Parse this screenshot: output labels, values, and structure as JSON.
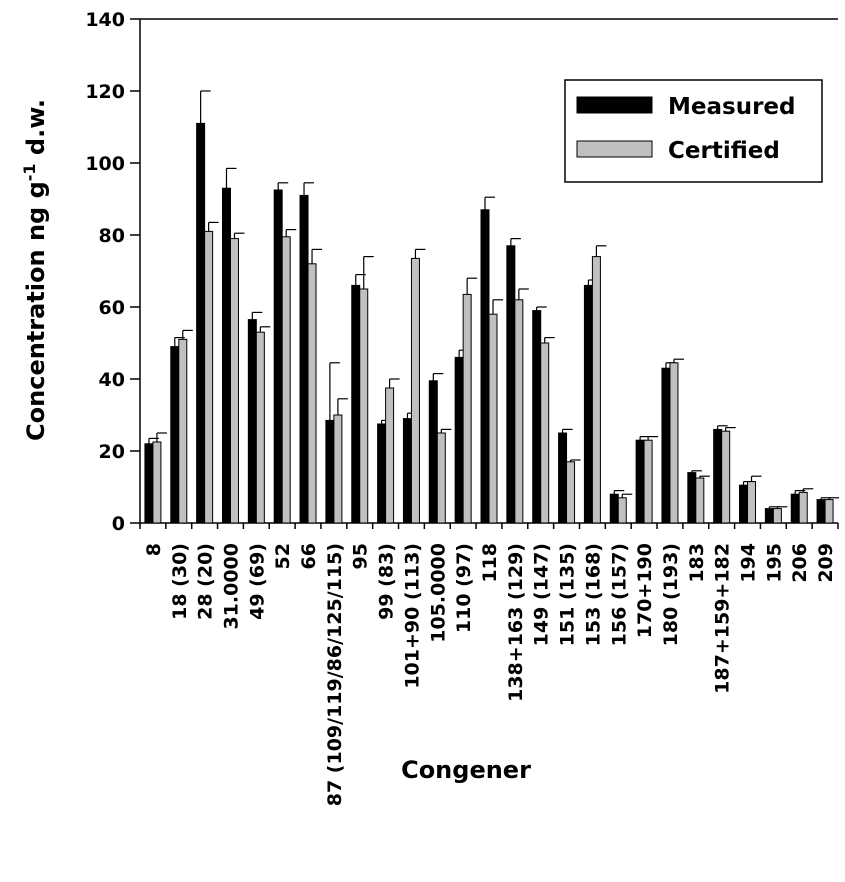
{
  "chart_data": {
    "type": "bar",
    "xlabel": "Congener",
    "ylabel": "Concentration ng g",
    "ylabel_sup": "-1",
    "ylabel_tail": " d.w.",
    "ylim": [
      0,
      140
    ],
    "yticks": [
      0,
      20,
      40,
      60,
      80,
      100,
      120,
      140
    ],
    "ytick_labels": [
      "0",
      "20",
      "40",
      "60",
      "80",
      "100",
      "120",
      "140"
    ],
    "legend_position": "top-right",
    "categories": [
      "8",
      "18 (30)",
      "28 (20)",
      "31.0000",
      "49 (69)",
      "52",
      "66",
      "87 (109/119/86/125/115)",
      "95",
      "99 (83)",
      "101+90 (113)",
      "105.0000",
      "110 (97)",
      "118",
      "138+163 (129)",
      "149 (147)",
      "151 (135)",
      "153 (168)",
      "156 (157)",
      "170+190",
      "180 (193)",
      "183",
      "187+159+182",
      "194",
      "195",
      "206",
      "209"
    ],
    "series": [
      {
        "name": "Measured",
        "color": "#000000",
        "values": [
          22,
          49,
          111,
          93,
          56.5,
          92.5,
          91,
          28.5,
          66,
          27.5,
          29,
          39.5,
          46,
          87,
          77,
          59,
          25,
          66,
          8,
          23,
          43,
          14,
          26,
          10.5,
          4,
          8,
          6.5
        ],
        "errors": [
          1.5,
          2.5,
          9,
          5.5,
          2,
          2,
          3.5,
          16,
          3,
          1,
          1.5,
          2,
          2,
          3.5,
          2,
          1,
          1,
          1.5,
          1,
          1,
          1.5,
          0.5,
          1,
          1,
          0.5,
          1,
          0.5
        ]
      },
      {
        "name": "Certified",
        "color": "#c0c0c0",
        "values": [
          22.5,
          51,
          81,
          79,
          53,
          79.5,
          72,
          30,
          65,
          37.5,
          73.5,
          25,
          63.5,
          58,
          62,
          50,
          17,
          74,
          7,
          23,
          44.5,
          12.5,
          25.5,
          11.5,
          4,
          8.5,
          6.5
        ],
        "errors": [
          2.5,
          2.5,
          2.5,
          1.5,
          1.5,
          2,
          4,
          4.5,
          9,
          2.5,
          2.5,
          1,
          4.5,
          4,
          3,
          1.5,
          0.5,
          3,
          1,
          1,
          1,
          0.5,
          1,
          1.5,
          0.5,
          1,
          0.5
        ]
      }
    ]
  }
}
